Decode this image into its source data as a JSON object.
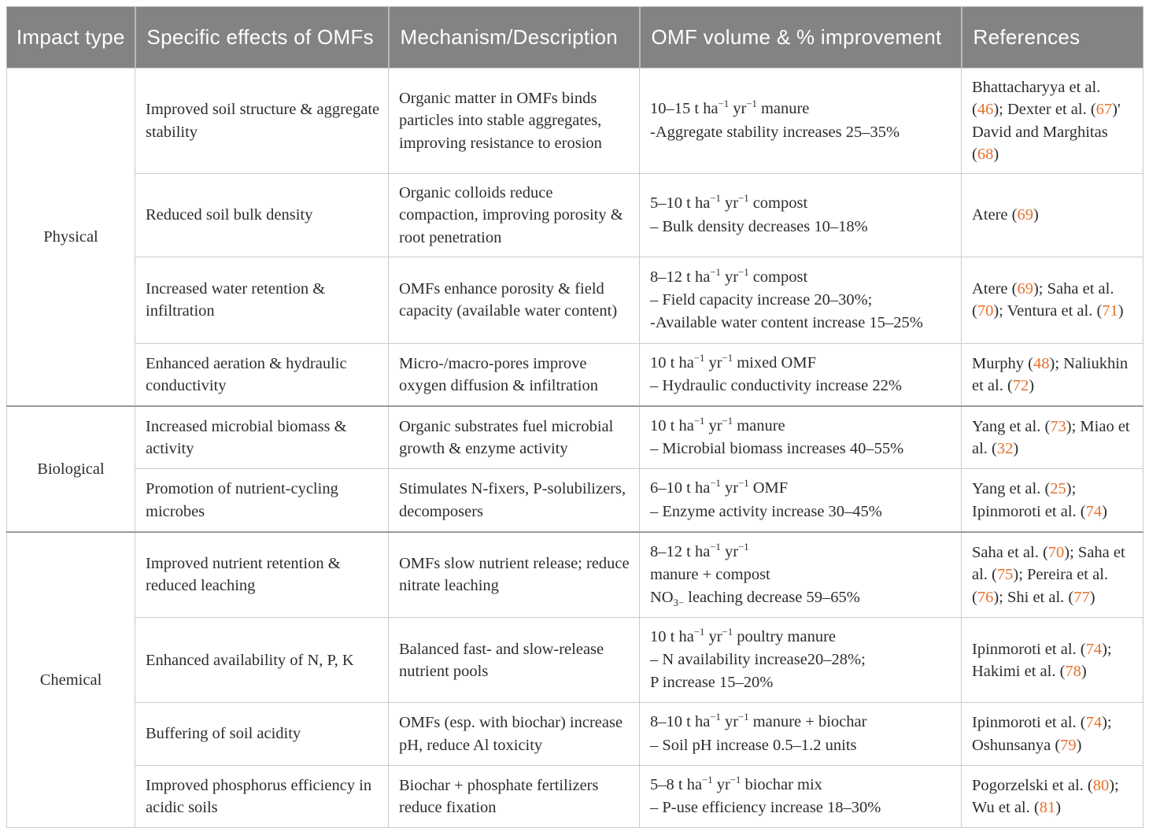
{
  "accent_color": "#e8702a",
  "header_bg": "#838383",
  "table": {
    "headers": [
      {
        "label": "Impact type"
      },
      {
        "label": "Specific effects of OMFs"
      },
      {
        "label": "Mechanism/Description"
      },
      {
        "label": "OMF volume & % improvement"
      },
      {
        "label": "References"
      }
    ],
    "groups": [
      {
        "impact_type": "Physical",
        "rows": [
          {
            "effect": "Improved soil structure & aggregate stability",
            "mechanism": "Organic matter in OMFs binds particles into stable aggregates, improving resistance to erosion",
            "volume_lines": [
              "10–15 t ha^{−1} yr^{−1} manure",
              "-Aggregate stability increases 25–35%"
            ],
            "references": "Bhattacharyya et al. (46); Dexter et al. (67)' David and Marghitas (68)"
          },
          {
            "effect": "Reduced soil bulk density",
            "mechanism": "Organic colloids reduce compaction, improving porosity & root penetration",
            "volume_lines": [
              "5–10 t ha^{−1} yr^{−1} compost",
              "– Bulk density decreases 10–18%"
            ],
            "references": "Atere (69)"
          },
          {
            "effect": "Increased water retention & infiltration",
            "mechanism": "OMFs enhance porosity & field capacity (available water content)",
            "volume_lines": [
              "8–12 t ha^{−1} yr^{−1} compost",
              "– Field capacity increase 20–30%;",
              "-Available water content increase 15–25%"
            ],
            "references": "Atere (69); Saha et al. (70); Ventura et al. (71)"
          },
          {
            "effect": "Enhanced aeration & hydraulic conductivity",
            "mechanism": "Micro-/macro-pores improve oxygen diffusion & infiltration",
            "volume_lines": [
              "10 t ha^{−1} yr^{−1} mixed OMF",
              "– Hydraulic conductivity increase 22%"
            ],
            "references": "Murphy (48); Naliukhin et al. (72)"
          }
        ]
      },
      {
        "impact_type": "Biological",
        "rows": [
          {
            "effect": "Increased microbial biomass & activity",
            "mechanism": "Organic substrates fuel microbial growth & enzyme activity",
            "volume_lines": [
              "10 t ha^{−1} yr^{−1} manure",
              "– Microbial biomass increases 40–55%"
            ],
            "references": "Yang et al. (73); Miao et al. (32)"
          },
          {
            "effect": "Promotion of nutrient-cycling microbes",
            "mechanism": "Stimulates N-fixers, P-solubilizers, decomposers",
            "volume_lines": [
              "6–10 t ha^{−1} yr^{−1} OMF",
              "– Enzyme activity increase 30–45%"
            ],
            "references": "Yang et al. (25); Ipinmoroti et al. (74)"
          }
        ]
      },
      {
        "impact_type": "Chemical",
        "rows": [
          {
            "effect": "Improved nutrient retention & reduced leaching",
            "mechanism": "OMFs slow nutrient release; reduce nitrate leaching",
            "volume_lines": [
              "8–12 t ha^{−1} yr^{−1}",
              "manure + compost",
              "NO_{3−} leaching decrease 59–65%"
            ],
            "references": "Saha et al. (70); Saha et al. (75); Pereira et al. (76); Shi et al. (77)"
          },
          {
            "effect": "Enhanced availability of N, P, K",
            "mechanism": "Balanced fast- and slow-release nutrient pools",
            "volume_lines": [
              "10 t ha^{−1} yr^{−1} poultry manure",
              "– N availability increase20–28%;",
              "P increase 15–20%"
            ],
            "references": "Ipinmoroti et al. (74); Hakimi et al. (78)"
          },
          {
            "effect": "Buffering of soil acidity",
            "mechanism": "OMFs (esp. with biochar) increase pH, reduce Al toxicity",
            "volume_lines": [
              "8–10 t ha^{−1} yr^{−1} manure + biochar",
              "– Soil pH increase 0.5–1.2 units"
            ],
            "references": "Ipinmoroti et al. (74); Oshunsanya (79)"
          },
          {
            "effect": "Improved phosphorus efficiency in acidic soils",
            "mechanism": "Biochar + phosphate fertilizers reduce fixation",
            "volume_lines": [
              "5–8 t ha^{−1} yr^{−1} biochar mix",
              "– P-use efficiency increase 18–30%"
            ],
            "references": "Pogorzelski et al. (80); Wu et al. (81)"
          }
        ]
      }
    ]
  }
}
